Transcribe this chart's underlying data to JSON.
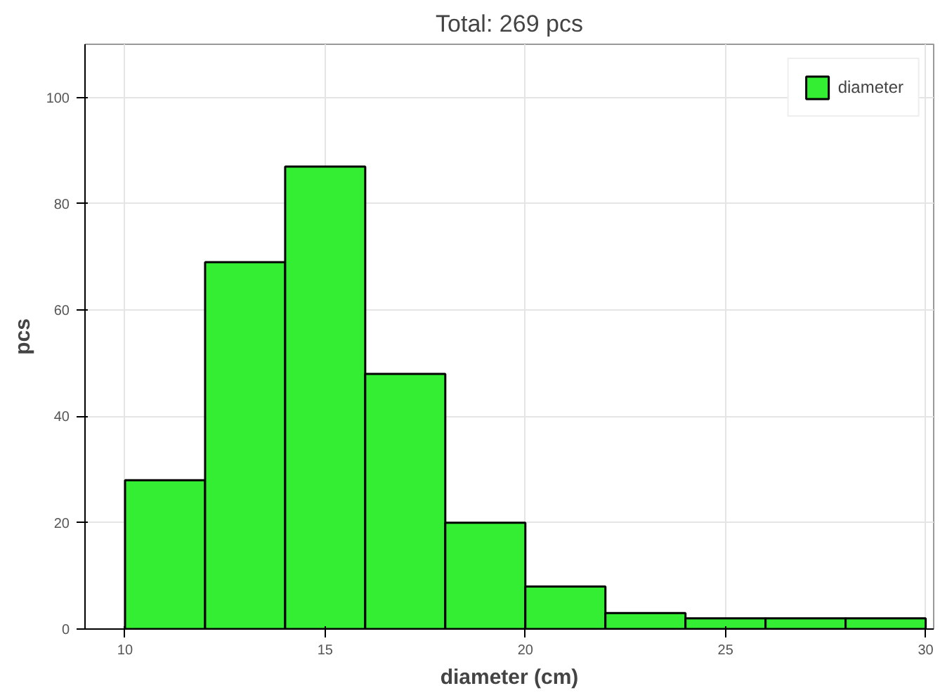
{
  "chart_data": {
    "type": "histogram",
    "title": "Total: 269 pcs",
    "xlabel": "diameter (cm)",
    "ylabel": "pcs",
    "bins": [
      10,
      12,
      14,
      16,
      18,
      20,
      22,
      24,
      26,
      28,
      30
    ],
    "series": [
      {
        "name": "diameter",
        "color": "#33ee33",
        "values": [
          28,
          69,
          87,
          48,
          20,
          8,
          3,
          2,
          2,
          2
        ]
      }
    ],
    "xlim": [
      9,
      30.2
    ],
    "ylim": [
      0,
      110
    ],
    "xticks": [
      10,
      15,
      20,
      25,
      30
    ],
    "yticks": [
      0,
      20,
      40,
      60,
      80,
      100
    ],
    "grid": true,
    "legend": "top right"
  }
}
